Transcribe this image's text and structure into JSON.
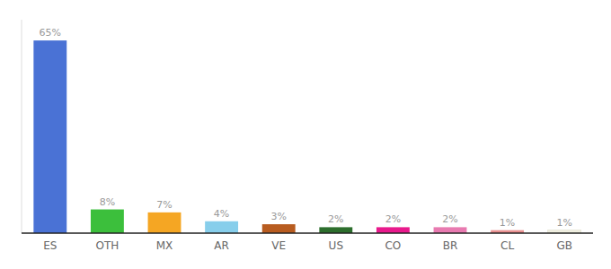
{
  "chart_data": {
    "type": "bar",
    "categories": [
      "ES",
      "OTH",
      "MX",
      "AR",
      "VE",
      "US",
      "CO",
      "BR",
      "CL",
      "GB"
    ],
    "values": [
      65,
      8,
      7,
      4,
      3,
      2,
      2,
      2,
      1,
      1
    ],
    "value_labels": [
      "65%",
      "8%",
      "7%",
      "4%",
      "3%",
      "2%",
      "2%",
      "2%",
      "1%",
      "1%"
    ],
    "colors": [
      "#4a72d5",
      "#3cbf3c",
      "#f5a623",
      "#87ceeb",
      "#b85c20",
      "#2d6e2d",
      "#e8198c",
      "#e87ab0",
      "#e89090",
      "#f0efe0"
    ],
    "ylim": [
      0,
      72
    ],
    "data_labels": true,
    "tick_labels": "x",
    "grid": false
  }
}
